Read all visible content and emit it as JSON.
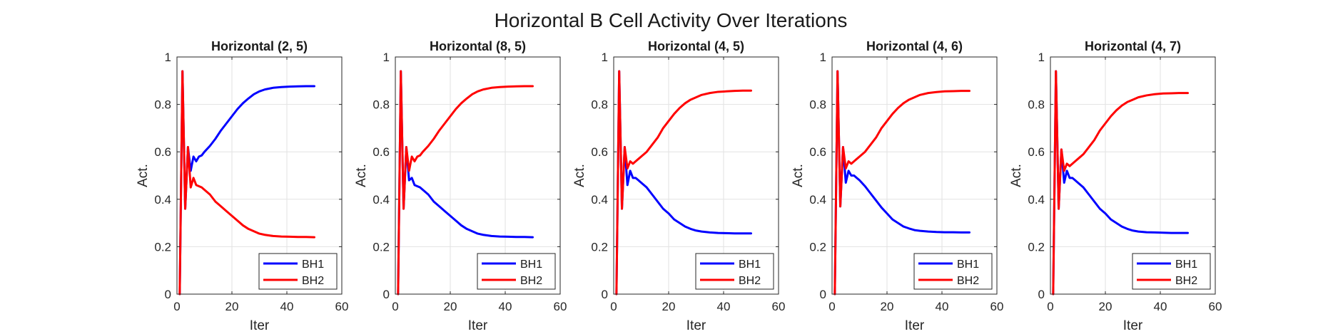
{
  "figure_title": "Horizontal B Cell Activity Over Iterations",
  "colors": {
    "BH1": "#0000ff",
    "BH2": "#ff0000",
    "grid": "#e2e2e2",
    "axis": "#262626"
  },
  "chart_data": [
    {
      "type": "line",
      "title": "Horizontal (2, 5)",
      "xlabel": "Iter",
      "ylabel": "Act.",
      "xlim": [
        0,
        60
      ],
      "ylim": [
        0,
        1
      ],
      "xticks": [
        "0",
        "20",
        "40",
        "60"
      ],
      "yticks": [
        "0",
        "0.2",
        "0.4",
        "0.6",
        "0.8",
        "1"
      ],
      "grid": true,
      "legend": "bottom-right",
      "x": [
        1,
        2,
        3,
        4,
        5,
        6,
        7,
        8,
        9,
        10,
        12,
        14,
        16,
        18,
        20,
        22,
        24,
        26,
        28,
        30,
        32,
        35,
        38,
        41,
        44,
        47,
        50
      ],
      "series": [
        {
          "name": "BH1",
          "values": [
            0,
            0.94,
            0.36,
            0.62,
            0.52,
            0.58,
            0.56,
            0.58,
            0.585,
            0.6,
            0.625,
            0.655,
            0.69,
            0.72,
            0.75,
            0.78,
            0.805,
            0.825,
            0.843,
            0.855,
            0.863,
            0.87,
            0.873,
            0.875,
            0.876,
            0.877,
            0.877
          ]
        },
        {
          "name": "BH2",
          "values": [
            0,
            0.94,
            0.36,
            0.62,
            0.45,
            0.49,
            0.46,
            0.455,
            0.45,
            0.44,
            0.42,
            0.39,
            0.37,
            0.35,
            0.33,
            0.31,
            0.29,
            0.275,
            0.265,
            0.255,
            0.25,
            0.245,
            0.243,
            0.242,
            0.241,
            0.241,
            0.24
          ]
        }
      ]
    },
    {
      "type": "line",
      "title": "Horizontal (8, 5)",
      "xlabel": "Iter",
      "ylabel": "Act.",
      "xlim": [
        0,
        60
      ],
      "ylim": [
        0,
        1
      ],
      "xticks": [
        "0",
        "20",
        "40",
        "60"
      ],
      "yticks": [
        "0",
        "0.2",
        "0.4",
        "0.6",
        "0.8",
        "1"
      ],
      "grid": true,
      "legend": "bottom-right",
      "x": [
        1,
        2,
        3,
        4,
        5,
        6,
        7,
        8,
        9,
        10,
        12,
        14,
        16,
        18,
        20,
        22,
        24,
        26,
        28,
        30,
        32,
        35,
        38,
        41,
        44,
        47,
        50
      ],
      "series": [
        {
          "name": "BH1",
          "values": [
            0,
            0.94,
            0.36,
            0.62,
            0.48,
            0.49,
            0.46,
            0.455,
            0.45,
            0.44,
            0.42,
            0.39,
            0.37,
            0.35,
            0.33,
            0.31,
            0.29,
            0.275,
            0.265,
            0.255,
            0.25,
            0.245,
            0.243,
            0.242,
            0.241,
            0.241,
            0.24
          ]
        },
        {
          "name": "BH2",
          "values": [
            0,
            0.94,
            0.36,
            0.62,
            0.52,
            0.58,
            0.56,
            0.58,
            0.585,
            0.6,
            0.625,
            0.655,
            0.69,
            0.72,
            0.75,
            0.78,
            0.805,
            0.825,
            0.843,
            0.855,
            0.863,
            0.87,
            0.873,
            0.875,
            0.876,
            0.877,
            0.877
          ]
        }
      ]
    },
    {
      "type": "line",
      "title": "Horizontal (4, 5)",
      "xlabel": "Iter",
      "ylabel": "Act.",
      "xlim": [
        0,
        60
      ],
      "ylim": [
        0,
        1
      ],
      "xticks": [
        "0",
        "20",
        "40",
        "60"
      ],
      "yticks": [
        "0",
        "0.2",
        "0.4",
        "0.6",
        "0.8",
        "1"
      ],
      "grid": true,
      "legend": "bottom-right",
      "x": [
        1,
        2,
        3,
        4,
        5,
        6,
        7,
        8,
        9,
        10,
        12,
        14,
        16,
        18,
        20,
        22,
        24,
        26,
        28,
        30,
        32,
        35,
        38,
        41,
        44,
        47,
        50
      ],
      "series": [
        {
          "name": "BH1",
          "values": [
            0,
            0.94,
            0.36,
            0.62,
            0.46,
            0.52,
            0.49,
            0.49,
            0.48,
            0.47,
            0.45,
            0.42,
            0.39,
            0.36,
            0.34,
            0.315,
            0.3,
            0.285,
            0.275,
            0.268,
            0.264,
            0.26,
            0.258,
            0.257,
            0.256,
            0.256,
            0.256
          ]
        },
        {
          "name": "BH2",
          "values": [
            0,
            0.94,
            0.36,
            0.62,
            0.53,
            0.56,
            0.55,
            0.56,
            0.57,
            0.58,
            0.6,
            0.63,
            0.66,
            0.7,
            0.73,
            0.76,
            0.785,
            0.805,
            0.82,
            0.83,
            0.84,
            0.848,
            0.853,
            0.855,
            0.857,
            0.858,
            0.858
          ]
        }
      ]
    },
    {
      "type": "line",
      "title": "Horizontal (4, 6)",
      "xlabel": "Iter",
      "ylabel": "Act.",
      "xlim": [
        0,
        60
      ],
      "ylim": [
        0,
        1
      ],
      "xticks": [
        "0",
        "20",
        "40",
        "60"
      ],
      "yticks": [
        "0",
        "0.2",
        "0.4",
        "0.6",
        "0.8",
        "1"
      ],
      "grid": true,
      "legend": "bottom-right",
      "x": [
        1,
        2,
        3,
        4,
        5,
        6,
        7,
        8,
        9,
        10,
        12,
        14,
        16,
        18,
        20,
        22,
        24,
        26,
        28,
        30,
        32,
        35,
        38,
        41,
        44,
        47,
        50
      ],
      "series": [
        {
          "name": "BH1",
          "values": [
            0,
            0.94,
            0.37,
            0.62,
            0.47,
            0.52,
            0.5,
            0.5,
            0.49,
            0.48,
            0.455,
            0.425,
            0.395,
            0.365,
            0.34,
            0.315,
            0.3,
            0.285,
            0.277,
            0.27,
            0.267,
            0.264,
            0.262,
            0.261,
            0.261,
            0.26,
            0.26
          ]
        },
        {
          "name": "BH2",
          "values": [
            0,
            0.94,
            0.37,
            0.62,
            0.53,
            0.56,
            0.55,
            0.56,
            0.57,
            0.58,
            0.6,
            0.63,
            0.66,
            0.7,
            0.73,
            0.76,
            0.785,
            0.805,
            0.82,
            0.83,
            0.84,
            0.848,
            0.852,
            0.855,
            0.856,
            0.857,
            0.857
          ]
        }
      ]
    },
    {
      "type": "line",
      "title": "Horizontal (4, 7)",
      "xlabel": "Iter",
      "ylabel": "Act.",
      "xlim": [
        0,
        60
      ],
      "ylim": [
        0,
        1
      ],
      "xticks": [
        "0",
        "20",
        "40",
        "60"
      ],
      "yticks": [
        "0",
        "0.2",
        "0.4",
        "0.6",
        "0.8",
        "1"
      ],
      "grid": true,
      "legend": "bottom-right",
      "x": [
        1,
        2,
        3,
        4,
        5,
        6,
        7,
        8,
        9,
        10,
        12,
        14,
        16,
        18,
        20,
        22,
        24,
        26,
        28,
        30,
        32,
        35,
        38,
        41,
        44,
        47,
        50
      ],
      "series": [
        {
          "name": "BH1",
          "values": [
            0,
            0.94,
            0.36,
            0.61,
            0.47,
            0.52,
            0.49,
            0.49,
            0.48,
            0.47,
            0.45,
            0.42,
            0.39,
            0.36,
            0.34,
            0.315,
            0.3,
            0.285,
            0.275,
            0.268,
            0.264,
            0.261,
            0.26,
            0.259,
            0.258,
            0.258,
            0.258
          ]
        },
        {
          "name": "BH2",
          "values": [
            0,
            0.94,
            0.36,
            0.61,
            0.52,
            0.55,
            0.54,
            0.55,
            0.56,
            0.57,
            0.59,
            0.62,
            0.65,
            0.69,
            0.72,
            0.75,
            0.775,
            0.795,
            0.81,
            0.82,
            0.83,
            0.838,
            0.843,
            0.846,
            0.847,
            0.848,
            0.848
          ]
        }
      ]
    }
  ]
}
